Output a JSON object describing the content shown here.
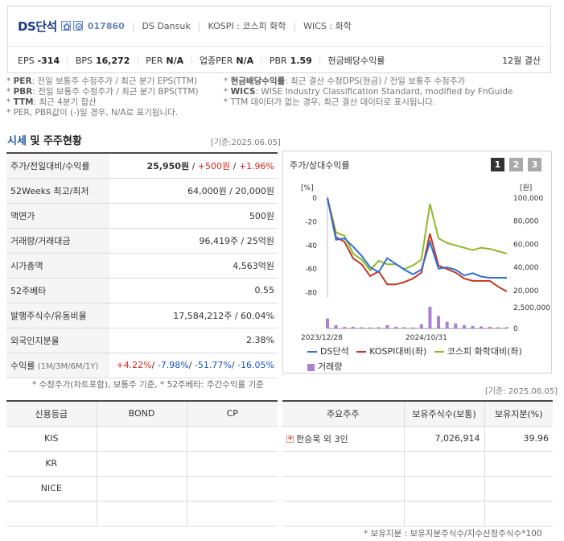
{
  "header": {
    "company_name": "DS단석",
    "code": "017860",
    "english_name": "DS Dansuk",
    "market": "KOSPI : 코스피 화학",
    "wics": "WICS : 화학",
    "metrics": [
      {
        "label": "EPS",
        "value": "-314"
      },
      {
        "label": "BPS",
        "value": "16,272"
      },
      {
        "label": "PER",
        "value": "N/A"
      },
      {
        "label": "업종PER",
        "value": "N/A"
      },
      {
        "label": "PBR",
        "value": "1.59"
      },
      {
        "label": "현금배당수익률",
        "value": ""
      }
    ],
    "fiscal": "12월 결산"
  },
  "notes": {
    "left": [
      {
        "b": "PER",
        "t": ": 전일 보통주 수정주가 / 최근 분기 EPS(TTM)"
      },
      {
        "b": "PBR",
        "t": ": 전일 보통주 수정주가 / 최근 분기 BPS(TTM)"
      },
      {
        "b": "TTM",
        "t": ": 최근 4분기 합산"
      },
      {
        "b": "",
        "t": "PER, PBR값이 (-)일 경우, N/A로 표기됩니다."
      }
    ],
    "right": [
      {
        "b": "현금배당수익률",
        "t": ": 최근 결산 수정DPS(현금) / 전일 보통주 수정주가"
      },
      {
        "b": "WICS",
        "t": ": WISE Industry Classification Standard, modified by FnGuide"
      },
      {
        "b": "",
        "t": "TTM 데이터가 없는 경우, 최근 결산 데이터로 표시됩니다."
      }
    ]
  },
  "market_section": {
    "title_a": "시세",
    "title_b": "및 주주현황",
    "date": "[기준:2025.06.05]",
    "rows": [
      {
        "label": "주가/전일대비/수익률",
        "v1": "25,950원",
        "v2": "+500원",
        "v3": "+1.96%"
      },
      {
        "label": "52Weeks 최고/최저",
        "value": "64,000원 / 20,000원"
      },
      {
        "label": "액면가",
        "value": "500원"
      },
      {
        "label": "거래량/거래대금",
        "value": "96,419주 / 25억원"
      },
      {
        "label": "시가총액",
        "value": "4,563억원"
      },
      {
        "label": "52주베타",
        "value": "0.55"
      },
      {
        "label": "발행주식수/유동비율",
        "value": "17,584,212주 / 60.04%"
      },
      {
        "label": "외국인지분율",
        "value": "2.38%"
      },
      {
        "label": "수익률",
        "label_small": "(1M/3M/6M/1Y)",
        "r1": "+4.22%",
        "r2": "-7.98%",
        "r3": "-51.77%",
        "r4": "-16.05%"
      }
    ],
    "footnote": "* 수정주가(차트포함), 보통주 기준, * 52주베타: 주간수익률 기준"
  },
  "chart_panel": {
    "title": "주가/상대수익률",
    "pages": [
      "1",
      "2",
      "3"
    ],
    "active_page": "1",
    "legend": [
      {
        "name": "DS단석",
        "color": "#2e6fd8"
      },
      {
        "name": "KOSPI대비(좌)",
        "color": "#c8361c"
      },
      {
        "name": "코스피 화학대비(좌)",
        "color": "#8dbb22"
      },
      {
        "name": "거래량",
        "color": "#a980d6"
      }
    ]
  },
  "chart_data": {
    "type": "line",
    "left_axis_label": "[%]",
    "right_axis_label": "[원]",
    "left_ticks": [
      "0",
      "-20",
      "-40",
      "-60",
      "-80"
    ],
    "ylim_left": [
      -83,
      0
    ],
    "right_ticks": [
      "100,000",
      "80,000",
      "60,000",
      "40,000",
      "20,000"
    ],
    "ylim_right": [
      15000,
      100000
    ],
    "volume_ticks": [
      "2,500,000",
      "0"
    ],
    "x_labels": [
      "2023/12/28",
      "2024/10/31"
    ],
    "series": [
      {
        "name": "DS단석",
        "axis": "right",
        "values": [
          100000,
          64000,
          65000,
          58000,
          50000,
          40000,
          36000,
          48000,
          43000,
          38000,
          34000,
          38000,
          62000,
          39000,
          40000,
          38000,
          33000,
          35000,
          32000,
          31000,
          31000,
          31000
        ]
      },
      {
        "name": "KOSPI대비(좌)",
        "axis": "left",
        "values": [
          0,
          -33,
          -37,
          -51,
          -56,
          -66,
          -62,
          -73,
          -73,
          -71,
          -68,
          -63,
          -30,
          -57,
          -60,
          -63,
          -68,
          -70,
          -70,
          -70,
          -75,
          -79
        ]
      },
      {
        "name": "코스피 화학대비(좌)",
        "axis": "left",
        "values": [
          0,
          -29,
          -32,
          -47,
          -52,
          -61,
          -53,
          -56,
          -56,
          -60,
          -57,
          -52,
          -5,
          -34,
          -38,
          -40,
          -42,
          -44,
          -42,
          -43,
          -45,
          -47
        ]
      }
    ],
    "volume": [
      1200000,
      400000,
      200000,
      200000,
      150000,
      120000,
      150000,
      400000,
      200000,
      150000,
      120000,
      500000,
      2600000,
      1500000,
      800000,
      600000,
      400000,
      300000,
      250000,
      200000,
      150000,
      150000
    ]
  },
  "right_date": "[기준: 2025.06.05]",
  "credit_table": {
    "headers": [
      "신용등급",
      "BOND",
      "CP"
    ],
    "rows": [
      [
        "KIS",
        "",
        ""
      ],
      [
        "KR",
        "",
        ""
      ],
      [
        "NICE",
        "",
        ""
      ],
      [
        "",
        "",
        ""
      ]
    ]
  },
  "holder_table": {
    "headers": [
      "주요주주",
      "보유주식수(보통)",
      "보유지분(%)"
    ],
    "rows": [
      [
        "한승욱 외 3인",
        "7,026,914",
        "39.96"
      ],
      [
        "",
        "",
        ""
      ],
      [
        "",
        "",
        ""
      ],
      [
        "",
        "",
        ""
      ]
    ]
  },
  "holder_footnote": "* 보유지분 : 보유지분주식수/지수산정주식수*100"
}
